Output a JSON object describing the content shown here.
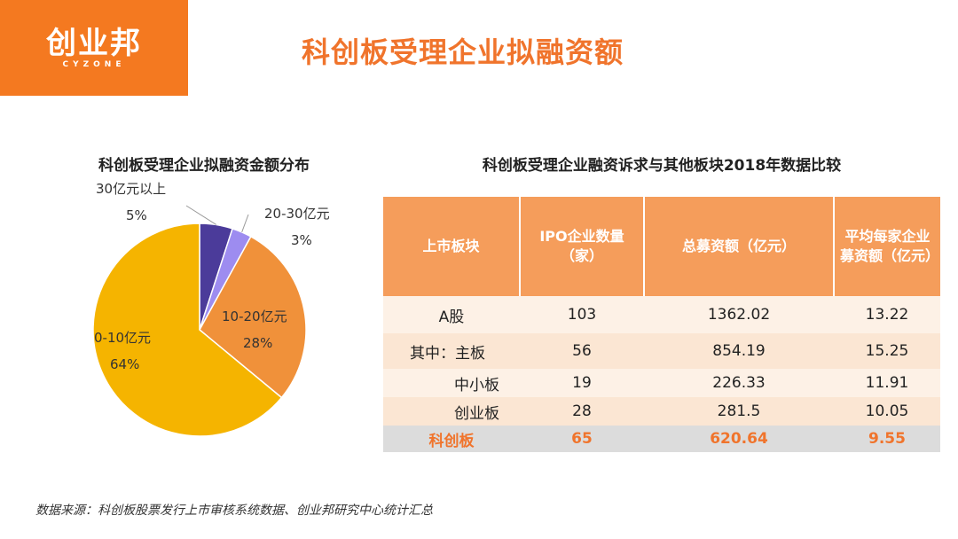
{
  "logo": {
    "main": "创业邦",
    "sub": "CYZONE"
  },
  "title": "科创板受理企业拟融资额",
  "pie_title": "科创板受理企业拟融资金额分布",
  "table_title": "科创板受理企业融资诉求与其他板块2018年数据比较",
  "source": "数据来源：科创板股票发行上市审核系统数据、创业邦研究中心统计汇总",
  "chart_data": [
    {
      "type": "pie",
      "title": "科创板受理企业拟融资金额分布",
      "categories": [
        "30亿元以上",
        "20-30亿元",
        "10-20亿元",
        "0-10亿元"
      ],
      "values": [
        5,
        3,
        28,
        64
      ],
      "labels": [
        "5%",
        "3%",
        "28%",
        "64%"
      ],
      "colors": [
        "#4b3b9a",
        "#9d8cf0",
        "#f0913a",
        "#f5b400"
      ]
    },
    {
      "type": "table",
      "title": "科创板受理企业融资诉求与其他板块2018年数据比较",
      "headers": [
        "上市板块",
        "IPO企业数量（家）",
        "总募资额（亿元）",
        "平均每家企业募资额（亿元）"
      ],
      "rows": [
        [
          "A股",
          "103",
          "1362.02",
          "13.22"
        ],
        [
          "其中：主板",
          "56",
          "854.19",
          "15.25"
        ],
        [
          "中小板",
          "19",
          "226.33",
          "11.91"
        ],
        [
          "创业板",
          "28",
          "281.5",
          "10.05"
        ],
        [
          "科创板",
          "65",
          "620.64",
          "9.55"
        ]
      ]
    }
  ]
}
